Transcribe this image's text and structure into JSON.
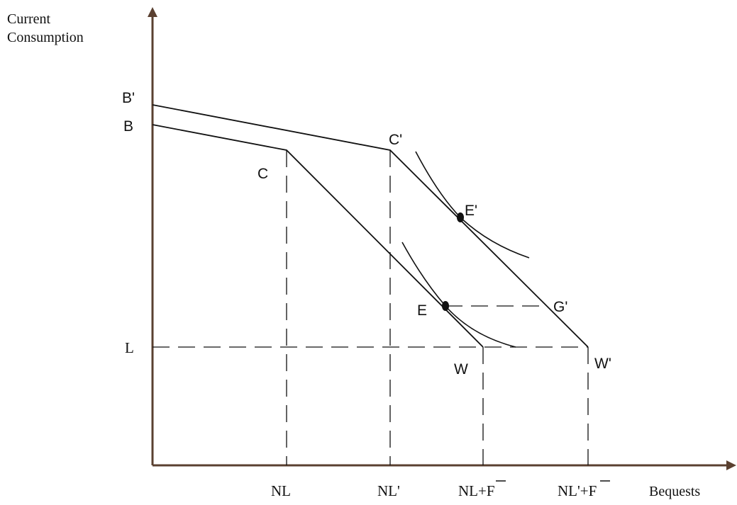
{
  "axes": {
    "y_label_line1": "Current",
    "y_label_line2": "Consumption",
    "x_label": "Bequests"
  },
  "points": {
    "B_prime": "B'",
    "B": "B",
    "C": "C",
    "C_prime": "C'",
    "E_prime": "E'",
    "E": "E",
    "G_prime": "G'",
    "W": "W",
    "W_prime": "W'"
  },
  "y_ticks": {
    "L": "L"
  },
  "x_ticks": {
    "NL": "NL",
    "NL_prime": "NL'",
    "NL_F_prefix": "NL+",
    "NL_prime_F_prefix": "NL'+",
    "F": "F"
  },
  "colors": {
    "axis": "#5a4030",
    "lines": "#111111"
  }
}
